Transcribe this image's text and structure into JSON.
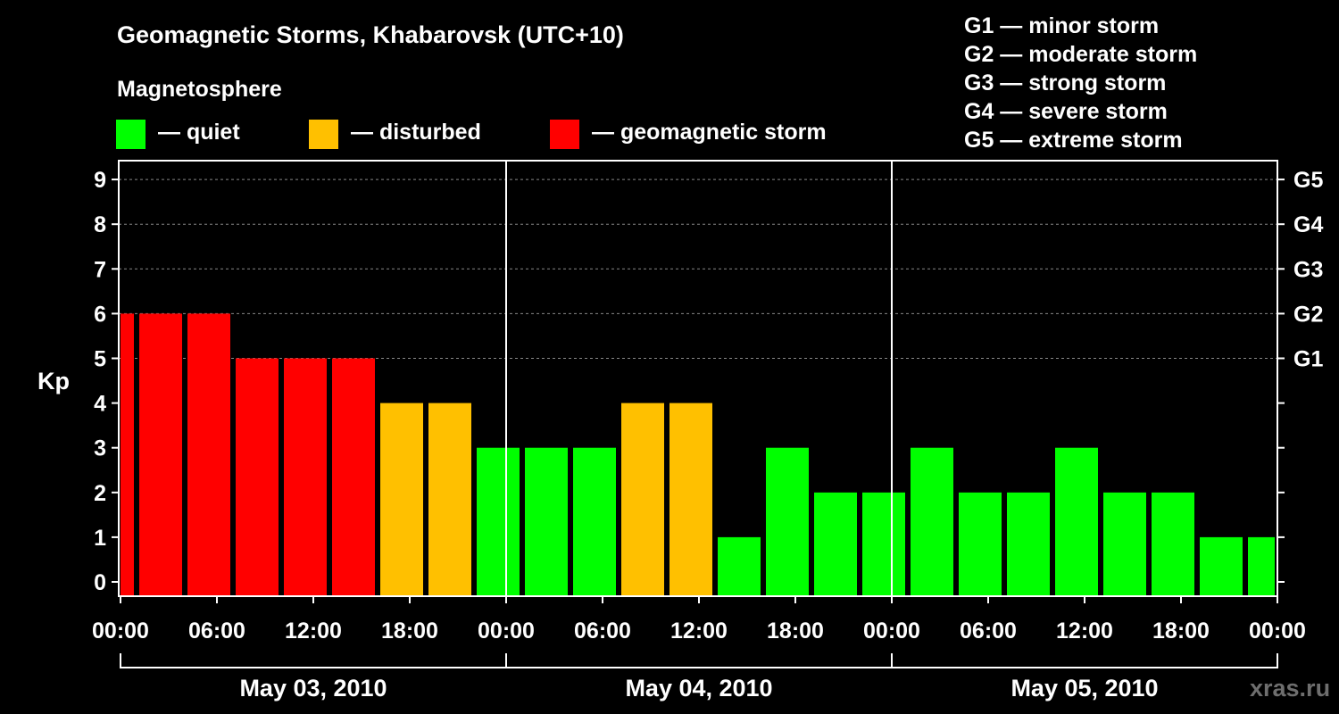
{
  "chart_data": {
    "type": "bar",
    "title": "Geomagnetic Storms, Khabarovsk (UTC+10)",
    "subtitle": "Magnetosphere",
    "ylabel": "Kp",
    "ylim": [
      0,
      9
    ],
    "yticks": [
      "0",
      "1",
      "2",
      "3",
      "4",
      "5",
      "6",
      "7",
      "8",
      "9"
    ],
    "right_ticks": [
      {
        "kp": 5,
        "label": "G1"
      },
      {
        "kp": 6,
        "label": "G2"
      },
      {
        "kp": 7,
        "label": "G3"
      },
      {
        "kp": 8,
        "label": "G4"
      },
      {
        "kp": 9,
        "label": "G5"
      }
    ],
    "x_tick_labels": [
      "00:00",
      "06:00",
      "12:00",
      "18:00",
      "00:00",
      "06:00",
      "12:00",
      "18:00",
      "00:00",
      "06:00",
      "12:00",
      "18:00",
      "00:00"
    ],
    "days": [
      "May 03, 2010",
      "May 04, 2010",
      "May 05, 2010"
    ],
    "interval_hours": 3,
    "start_hour": -2,
    "values": [
      6,
      6,
      6,
      5,
      5,
      5,
      4,
      4,
      3,
      3,
      3,
      4,
      4,
      1,
      3,
      2,
      2,
      3,
      2,
      2,
      3,
      2,
      2,
      1,
      1
    ],
    "grid": "dashed horizontal at Kp 5-9",
    "legend": [
      {
        "label": "— quiet",
        "color": "#00ff00"
      },
      {
        "label": "— disturbed",
        "color": "#ffc000"
      },
      {
        "label": "— geomagnetic storm",
        "color": "#ff0000"
      }
    ],
    "scale_legend": [
      "G1 — minor storm",
      "G2 — moderate storm",
      "G3 — strong storm",
      "G4 — severe storm",
      "G5 — extreme storm"
    ]
  },
  "watermark": "xras.ru"
}
